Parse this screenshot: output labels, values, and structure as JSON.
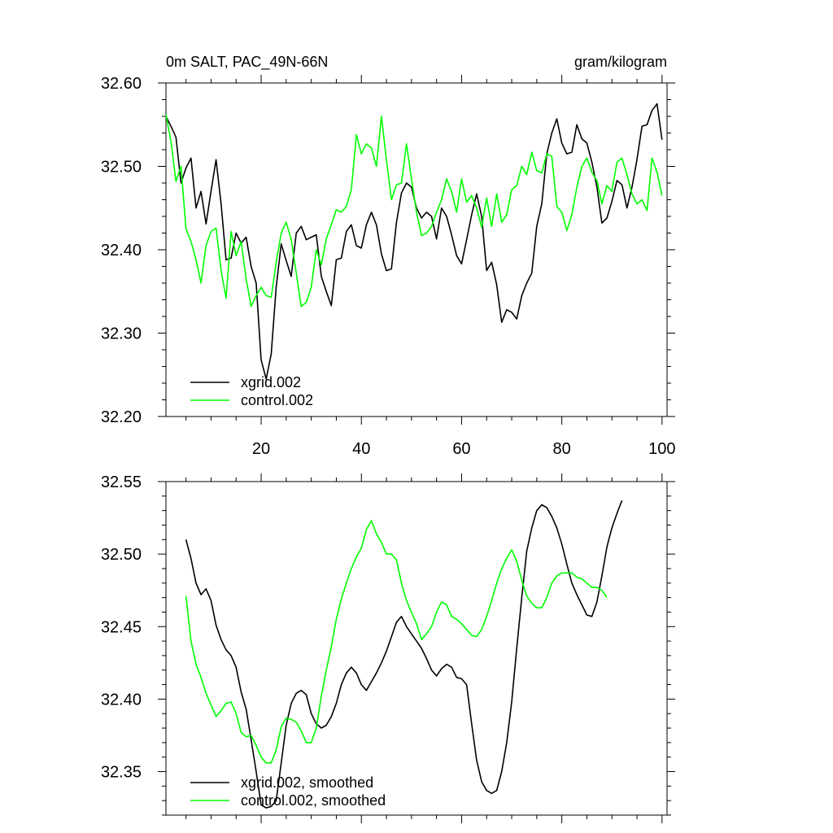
{
  "chart_data": [
    {
      "type": "line",
      "title_left": "0m SALT, PAC_49N-66N",
      "title_right": "gram/kilogram",
      "xlabel": "",
      "ylabel": "",
      "xlim": [
        1,
        101
      ],
      "ylim": [
        32.2,
        32.6
      ],
      "xticks": [
        20,
        40,
        60,
        80,
        100
      ],
      "yticks": [
        32.2,
        32.3,
        32.4,
        32.5,
        32.6
      ],
      "ytick_labels": [
        "32.20",
        "32.30",
        "32.40",
        "32.50",
        "32.60"
      ],
      "legend_position": "bottom-left",
      "series": [
        {
          "name": "xgrid.002",
          "color": "#000000",
          "x_start": 1,
          "values": [
            32.56,
            32.548,
            32.535,
            32.48,
            32.498,
            32.51,
            32.45,
            32.47,
            32.431,
            32.47,
            32.508,
            32.455,
            32.388,
            32.39,
            32.42,
            32.408,
            32.415,
            32.38,
            32.36,
            32.268,
            32.245,
            32.275,
            32.355,
            32.407,
            32.387,
            32.368,
            32.42,
            32.428,
            32.412,
            32.415,
            32.418,
            32.368,
            32.35,
            32.333,
            32.388,
            32.39,
            32.422,
            32.43,
            32.405,
            32.402,
            32.43,
            32.445,
            32.43,
            32.395,
            32.375,
            32.377,
            32.433,
            32.468,
            32.48,
            32.475,
            32.45,
            32.438,
            32.445,
            32.44,
            32.413,
            32.45,
            32.44,
            32.418,
            32.393,
            32.383,
            32.412,
            32.442,
            32.467,
            32.44,
            32.375,
            32.385,
            32.358,
            32.313,
            32.328,
            32.325,
            32.317,
            32.345,
            32.36,
            32.372,
            32.428,
            32.455,
            32.515,
            32.54,
            32.557,
            32.528,
            32.515,
            32.517,
            32.55,
            32.533,
            32.528,
            32.505,
            32.475,
            32.432,
            32.438,
            32.458,
            32.483,
            32.478,
            32.45,
            32.475,
            32.508,
            32.548,
            32.55,
            32.567,
            32.575,
            32.532
          ]
        },
        {
          "name": "control.002",
          "color": "#00ff00",
          "x_start": 1,
          "values": [
            32.562,
            32.53,
            32.482,
            32.5,
            32.425,
            32.41,
            32.388,
            32.36,
            32.405,
            32.422,
            32.426,
            32.375,
            32.342,
            32.422,
            32.393,
            32.41,
            32.365,
            32.332,
            32.345,
            32.355,
            32.345,
            32.343,
            32.385,
            32.42,
            32.433,
            32.412,
            32.372,
            32.332,
            32.337,
            32.355,
            32.4,
            32.382,
            32.413,
            32.43,
            32.448,
            32.445,
            32.452,
            32.472,
            32.538,
            32.515,
            32.527,
            32.522,
            32.5,
            32.56,
            32.508,
            32.46,
            32.478,
            32.48,
            32.527,
            32.485,
            32.445,
            32.417,
            32.42,
            32.428,
            32.445,
            32.46,
            32.485,
            32.47,
            32.445,
            32.485,
            32.457,
            32.465,
            32.45,
            32.427,
            32.462,
            32.428,
            32.467,
            32.433,
            32.442,
            32.472,
            32.477,
            32.5,
            32.49,
            32.517,
            32.495,
            32.492,
            32.515,
            32.512,
            32.452,
            32.445,
            32.423,
            32.442,
            32.475,
            32.5,
            32.51,
            32.493,
            32.483,
            32.455,
            32.477,
            32.47,
            32.505,
            32.51,
            32.49,
            32.467,
            32.455,
            32.46,
            32.447,
            32.51,
            32.493,
            32.465
          ]
        }
      ]
    },
    {
      "type": "line",
      "title_left": "",
      "title_right": "",
      "xlabel": "",
      "ylabel": "",
      "xlim": [
        1,
        101
      ],
      "ylim": [
        32.32,
        32.55
      ],
      "xticks": [
        20,
        40,
        60,
        80,
        100
      ],
      "yticks": [
        32.35,
        32.4,
        32.45,
        32.5,
        32.55
      ],
      "ytick_labels": [
        "32.35",
        "32.40",
        "32.45",
        "32.50",
        "32.55"
      ],
      "legend_position": "bottom-left",
      "series": [
        {
          "name": "xgrid.002, smoothed",
          "color": "#000000",
          "x_start": 5,
          "values": [
            32.51,
            32.497,
            32.48,
            32.472,
            32.476,
            32.468,
            32.451,
            32.441,
            32.434,
            32.43,
            32.422,
            32.405,
            32.393,
            32.372,
            32.35,
            32.327,
            32.325,
            32.326,
            32.33,
            32.356,
            32.382,
            32.397,
            32.404,
            32.406,
            32.403,
            32.39,
            32.383,
            32.38,
            32.382,
            32.388,
            32.397,
            32.41,
            32.418,
            32.422,
            32.418,
            32.41,
            32.406,
            32.412,
            32.418,
            32.425,
            32.433,
            32.443,
            32.453,
            32.457,
            32.45,
            32.445,
            32.44,
            32.435,
            32.428,
            32.42,
            32.416,
            32.421,
            32.424,
            32.422,
            32.415,
            32.414,
            32.41,
            32.383,
            32.358,
            32.343,
            32.337,
            32.335,
            32.337,
            32.35,
            32.37,
            32.398,
            32.435,
            32.47,
            32.502,
            32.518,
            32.53,
            32.534,
            32.532,
            32.526,
            32.518,
            32.507,
            32.493,
            32.48,
            32.472,
            32.465,
            32.458,
            32.457,
            32.467,
            32.485,
            32.505,
            32.518,
            32.528,
            32.537
          ]
        },
        {
          "name": "control.002, smoothed",
          "color": "#00ff00",
          "x_start": 5,
          "values": [
            32.471,
            32.44,
            32.424,
            32.415,
            32.404,
            32.396,
            32.388,
            32.392,
            32.397,
            32.398,
            32.39,
            32.377,
            32.374,
            32.375,
            32.368,
            32.36,
            32.356,
            32.356,
            32.365,
            32.381,
            32.387,
            32.386,
            32.384,
            32.378,
            32.37,
            32.37,
            32.38,
            32.402,
            32.42,
            32.436,
            32.455,
            32.469,
            32.48,
            32.49,
            32.498,
            32.504,
            32.517,
            32.523,
            32.514,
            32.508,
            32.5,
            32.5,
            32.496,
            32.48,
            32.468,
            32.46,
            32.452,
            32.441,
            32.445,
            32.45,
            32.46,
            32.467,
            32.465,
            32.457,
            32.455,
            32.452,
            32.448,
            32.444,
            32.443,
            32.448,
            32.457,
            32.468,
            32.48,
            32.49,
            32.497,
            32.503,
            32.495,
            32.482,
            32.471,
            32.466,
            32.463,
            32.463,
            32.47,
            32.48,
            32.485,
            32.487,
            32.487,
            32.487,
            32.484,
            32.483,
            32.48,
            32.477,
            32.477,
            32.475,
            32.47
          ]
        }
      ]
    }
  ]
}
